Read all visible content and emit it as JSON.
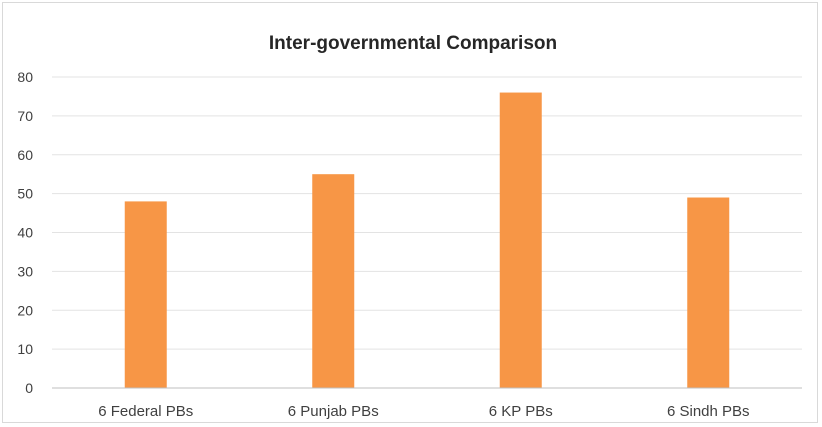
{
  "chart_data": {
    "type": "bar",
    "title": "Inter-governmental Comparison",
    "xlabel": "",
    "ylabel": "",
    "categories": [
      "6 Federal PBs",
      "6 Punjab PBs",
      "6 KP PBs",
      "6 Sindh PBs"
    ],
    "values": [
      48,
      55,
      76,
      49
    ],
    "ylim": [
      0,
      80
    ],
    "yticks": [
      0,
      10,
      20,
      30,
      40,
      50,
      60,
      70,
      80
    ],
    "grid": true,
    "legend": "none",
    "bar_color": "#F79646"
  }
}
